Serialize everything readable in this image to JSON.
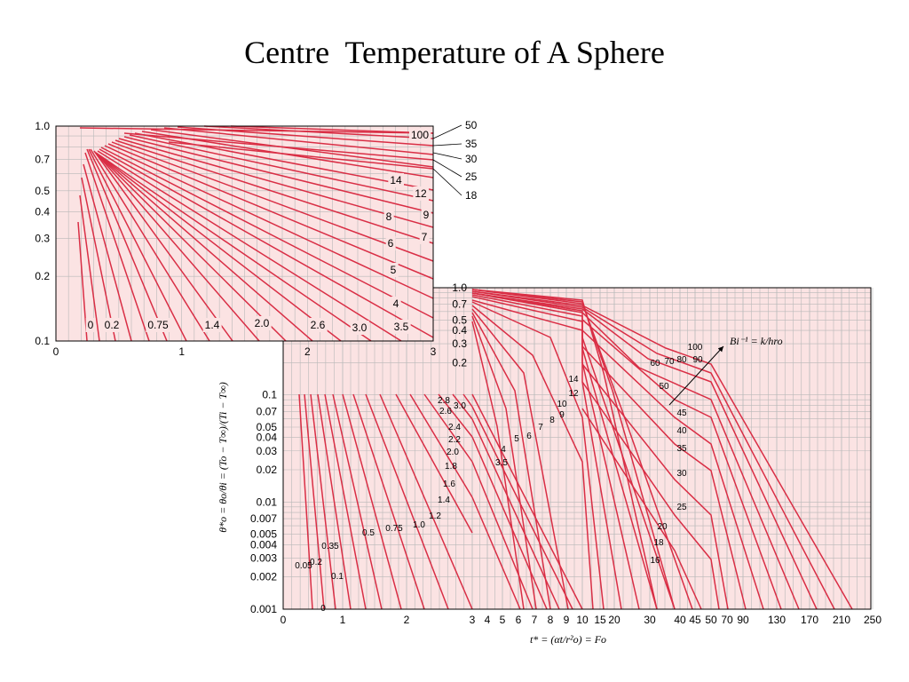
{
  "page": {
    "title": "Centre  Temperature of A Sphere"
  },
  "chart_data": [
    {
      "type": "line",
      "name": "inset",
      "scale_y": "log",
      "xlim": [
        0,
        3
      ],
      "ylim": [
        0.1,
        1.0
      ],
      "x_ticks": [
        "0",
        "1",
        "2",
        "3"
      ],
      "y_ticks": [
        "1.0",
        "0.7",
        "0.5",
        "0.4",
        "0.3",
        "0.2",
        "0.1"
      ],
      "grid": true,
      "series_labels": [
        "0",
        "0.2",
        "0.75",
        "1.4",
        "2.0",
        "2.6",
        "3.0",
        "3.5",
        "4",
        "5",
        "6",
        "7",
        "8",
        "9",
        "12",
        "14",
        "100",
        "50",
        "35",
        "30",
        "25",
        "18"
      ]
    },
    {
      "type": "line",
      "name": "main",
      "scale_y": "log",
      "y_ticks": [
        "1.0",
        "0.7",
        "0.5",
        "0.4",
        "0.3",
        "0.2",
        "0.1",
        "0.07",
        "0.05",
        "0.04",
        "0.03",
        "0.02",
        "0.01",
        "0.007",
        "0.005",
        "0.004",
        "0.003",
        "0.002",
        "0.001"
      ],
      "x_ticks": [
        "0",
        "1",
        "2",
        "3",
        "4",
        "5",
        "6",
        "7",
        "8",
        "9",
        "10",
        "15",
        "20",
        "30",
        "40",
        "45",
        "50",
        "70",
        "90",
        "130",
        "170",
        "210",
        "250"
      ],
      "ylabel": "θ*o = θo/θi = (To − T∞)/(Ti − T∞)",
      "xlabel": "t* = (αt/r²o) = Fo",
      "annotation": "Bi⁻¹ = k/hro",
      "grid": true,
      "series_labels": [
        "0",
        "0.05",
        "0.1",
        "0.2",
        "0.35",
        "0.5",
        "0.75",
        "1.0",
        "1.2",
        "1.4",
        "1.6",
        "1.8",
        "2.0",
        "2.2",
        "2.4",
        "2.6",
        "2.8",
        "3.0",
        "3.5",
        "4",
        "5",
        "6",
        "7",
        "8",
        "9",
        "10",
        "12",
        "14",
        "16",
        "18",
        "20",
        "25",
        "30",
        "35",
        "40",
        "45",
        "50",
        "60",
        "70",
        "80",
        "90",
        "100"
      ]
    }
  ]
}
